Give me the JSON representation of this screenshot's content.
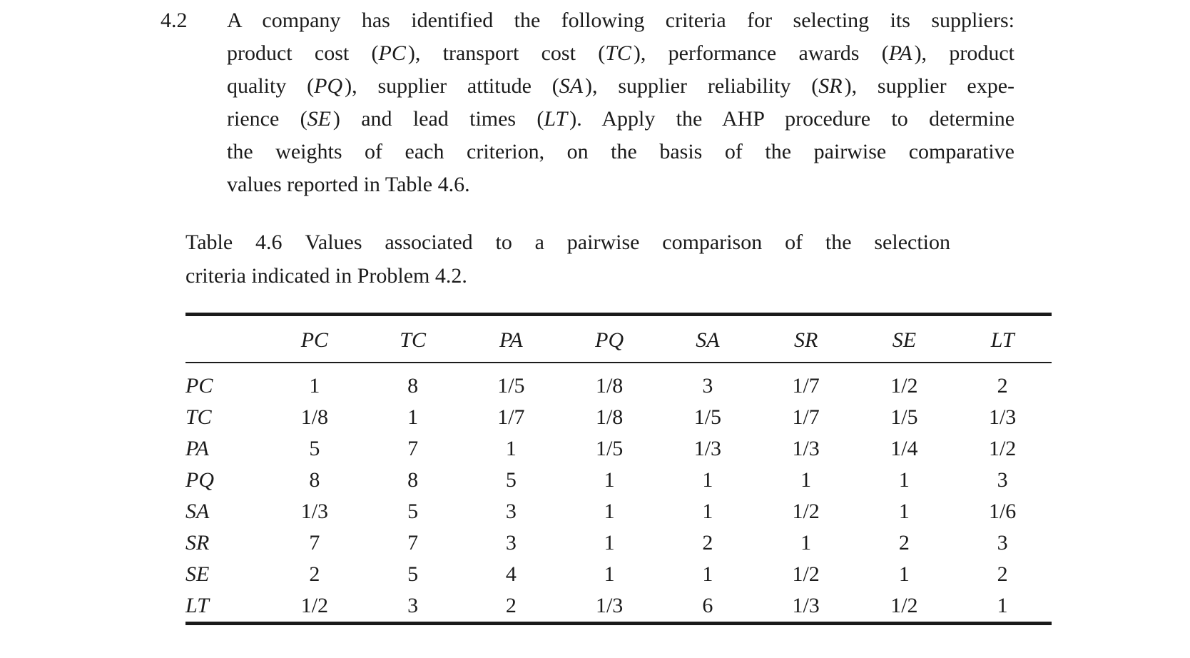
{
  "problem": {
    "number": "4.2",
    "lines": [
      [
        {
          "t": "A company has identified the following criteria for selecting its suppliers:"
        }
      ],
      [
        {
          "t": "product cost ("
        },
        {
          "t": "PC",
          "i": true
        },
        {
          "t": "), transport cost ("
        },
        {
          "t": "TC",
          "i": true
        },
        {
          "t": "), performance awards ("
        },
        {
          "t": "PA",
          "i": true
        },
        {
          "t": "), product"
        }
      ],
      [
        {
          "t": "quality ("
        },
        {
          "t": "PQ",
          "i": true
        },
        {
          "t": "), supplier attitude ("
        },
        {
          "t": "SA",
          "i": true
        },
        {
          "t": "), supplier reliability ("
        },
        {
          "t": "SR",
          "i": true
        },
        {
          "t": "), supplier expe-"
        }
      ],
      [
        {
          "t": "rience ("
        },
        {
          "t": "SE",
          "i": true
        },
        {
          "t": ") and lead times ("
        },
        {
          "t": "LT",
          "i": true
        },
        {
          "t": "). Apply the AHP procedure to determine"
        }
      ],
      [
        {
          "t": "the weights of each criterion, on the basis of the pairwise comparative"
        }
      ],
      [
        {
          "t": "values reported in Table 4.6."
        }
      ]
    ]
  },
  "caption": {
    "label": "Table 4.6",
    "line1_rest": "Values associated to a pairwise comparison of the selection",
    "line2": "criteria indicated in Problem 4.2."
  },
  "table": {
    "column_headers": [
      "PC",
      "TC",
      "PA",
      "PQ",
      "SA",
      "SR",
      "SE",
      "LT"
    ],
    "rows": [
      {
        "label": "PC",
        "values": [
          "1",
          "8",
          "1/5",
          "1/8",
          "3",
          "1/7",
          "1/2",
          "2"
        ]
      },
      {
        "label": "TC",
        "values": [
          "1/8",
          "1",
          "1/7",
          "1/8",
          "1/5",
          "1/7",
          "1/5",
          "1/3"
        ]
      },
      {
        "label": "PA",
        "values": [
          "5",
          "7",
          "1",
          "1/5",
          "1/3",
          "1/3",
          "1/4",
          "1/2"
        ]
      },
      {
        "label": "PQ",
        "values": [
          "8",
          "8",
          "5",
          "1",
          "1",
          "1",
          "1",
          "3"
        ]
      },
      {
        "label": "SA",
        "values": [
          "1/3",
          "5",
          "3",
          "1",
          "1",
          "1/2",
          "1",
          "1/6"
        ]
      },
      {
        "label": "SR",
        "values": [
          "7",
          "7",
          "3",
          "1",
          "2",
          "1",
          "2",
          "3"
        ]
      },
      {
        "label": "SE",
        "values": [
          "2",
          "5",
          "4",
          "1",
          "1",
          "1/2",
          "1",
          "2"
        ]
      },
      {
        "label": "LT",
        "values": [
          "1/2",
          "3",
          "2",
          "1/3",
          "6",
          "1/3",
          "1/2",
          "1"
        ]
      }
    ]
  },
  "colors": {
    "text": "#1b1b1b",
    "background": "#ffffff",
    "rule": "#1b1b1b"
  }
}
